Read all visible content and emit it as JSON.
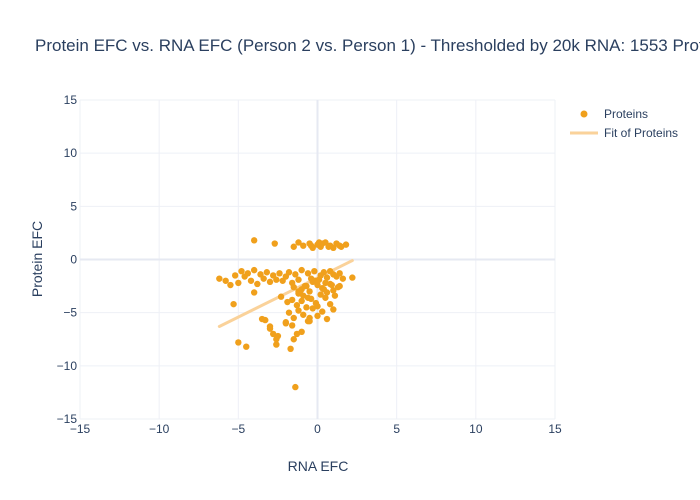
{
  "chart_data": {
    "type": "scatter",
    "title": "Protein EFC vs. RNA EFC (Person 2 vs. Person 1) - Thresholded by 20k RNA: 1553 Prot",
    "xlabel": "RNA EFC",
    "ylabel": "Protein EFC",
    "xlim": [
      -15,
      15
    ],
    "ylim": [
      -15,
      15
    ],
    "x_ticks": [
      "−15",
      "−10",
      "−5",
      "0",
      "5",
      "10",
      "15"
    ],
    "y_ticks": [
      "15",
      "10",
      "5",
      "0",
      "−5",
      "−10",
      "−15"
    ],
    "grid": true,
    "legend_position": "top-right",
    "colors": {
      "points": "#f0a01c",
      "fit": "#fad29a",
      "grid": "#eef0f6",
      "zero": "#e6e9f2",
      "text": "#2a3f5f"
    },
    "series": [
      {
        "name": "Proteins",
        "mode": "markers",
        "x": [
          -4.0,
          -2.7,
          -1.5,
          -1.2,
          -0.9,
          -0.5,
          -0.3,
          0.0,
          0.2,
          0.5,
          0.8,
          1.0,
          1.2,
          1.5,
          1.8,
          -0.4,
          0.3,
          0.7,
          1.4,
          0.1,
          -6.2,
          -5.8,
          -5.5,
          -5.2,
          -5.0,
          -4.8,
          -4.6,
          -4.4,
          -4.2,
          -4.0,
          -3.8,
          -3.6,
          -3.4,
          -3.2,
          -3.0,
          -2.8,
          -2.6,
          -2.4,
          -2.2,
          -2.0,
          -1.8,
          -1.6,
          -1.4,
          -1.2,
          -1.0,
          -0.8,
          -0.6,
          -0.4,
          -0.2,
          0.0,
          0.2,
          0.4,
          0.6,
          0.8,
          1.0,
          1.2,
          1.4,
          1.6,
          2.2,
          -1.5,
          -1.0,
          -0.5,
          0.0,
          0.5,
          1.0,
          -1.2,
          -0.7,
          -0.2,
          0.3,
          0.8,
          -0.9,
          -0.3,
          0.6,
          1.3,
          -0.6,
          0.1,
          0.9,
          -1.1,
          0.4,
          -2.3,
          -1.9,
          -1.6,
          -1.3,
          -1.0,
          -0.7,
          -0.4,
          -0.1,
          0.2,
          0.5,
          0.8,
          1.1,
          -1.8,
          -1.5,
          -1.2,
          -0.9,
          -0.6,
          -0.3,
          0.0,
          0.3,
          0.6,
          -3.0,
          -2.5,
          -2.0,
          -1.5,
          -1.0,
          -0.5,
          0.0,
          -5.3,
          -4.0,
          -3.5,
          -2.6,
          -1.7,
          -1.3,
          -0.5,
          1.0,
          1.4,
          -5.0,
          -4.5,
          -3.3,
          -3.0,
          -2.8,
          -2.6,
          -2.0,
          -1.6,
          -1.2,
          -1.4
        ],
        "y": [
          1.8,
          1.5,
          1.2,
          1.6,
          1.3,
          1.5,
          1.1,
          1.4,
          1.2,
          1.6,
          1.3,
          1.1,
          1.5,
          1.2,
          1.4,
          1.3,
          1.5,
          1.2,
          1.3,
          1.6,
          -1.8,
          -2.0,
          -2.4,
          -1.5,
          -2.2,
          -1.1,
          -1.6,
          -1.3,
          -2.0,
          -1.0,
          -2.3,
          -1.4,
          -1.8,
          -1.2,
          -2.1,
          -1.5,
          -1.9,
          -1.3,
          -2.0,
          -1.6,
          -1.2,
          -2.2,
          -1.4,
          -1.9,
          -1.0,
          -2.5,
          -1.3,
          -1.8,
          -1.1,
          -2.0,
          -1.5,
          -1.2,
          -1.7,
          -1.1,
          -1.4,
          -1.6,
          -1.3,
          -1.8,
          -1.7,
          -2.6,
          -2.8,
          -3.0,
          -2.4,
          -2.2,
          -2.9,
          -3.2,
          -2.5,
          -2.0,
          -2.7,
          -2.3,
          -3.4,
          -2.1,
          -3.1,
          -2.6,
          -3.6,
          -1.9,
          -2.4,
          -3.0,
          -2.8,
          -3.5,
          -4.0,
          -3.8,
          -4.3,
          -3.9,
          -4.5,
          -3.7,
          -4.1,
          -3.3,
          -3.6,
          -4.2,
          -3.4,
          -5.0,
          -5.5,
          -4.8,
          -5.2,
          -5.8,
          -4.6,
          -5.3,
          -4.9,
          -5.6,
          -6.5,
          -7.2,
          -6.0,
          -7.5,
          -6.8,
          -5.8,
          -4.4,
          -4.2,
          -3.1,
          -5.6,
          -8.0,
          -8.4,
          -7.0,
          -5.5,
          -4.7,
          -2.5,
          -7.8,
          -8.2,
          -5.7,
          -6.3,
          -7.0,
          -7.5,
          -5.9,
          -6.2,
          -3.0,
          -12.0
        ]
      },
      {
        "name": "Fit of Proteins",
        "mode": "line",
        "x": [
          -6.2,
          2.2
        ],
        "y": [
          -6.3,
          -0.1
        ]
      }
    ]
  }
}
